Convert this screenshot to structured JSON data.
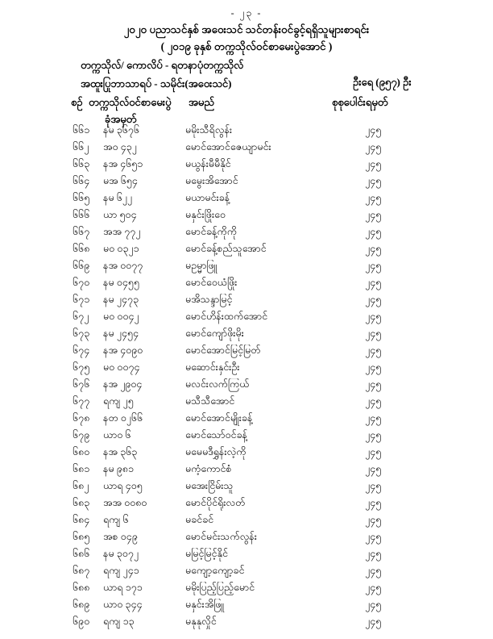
{
  "page": {
    "number_label": "- ၂၃ -"
  },
  "header": {
    "title": "၂၀၂၀ ပညာသင်နှစ် အဝေးသင် သင်တန်းဝင်ခွင့်ရရှိသူများစာရင်း",
    "subtitle": "( ၂၀၁၉ ခုနှစ် တက္ကသိုလ်ဝင်စာမေးပွဲအောင် )",
    "university_line": "တက္ကသိုလ်/ ကောလိပ်  -  ရတနာပုံတက္ကသိုလ်",
    "major_line": "အထူးပြုဘာသာရပ်  -  သမိုင်း(အဝေးသင်)",
    "count_label": "ဦးရေ (၉၅၇) ဦး"
  },
  "table": {
    "columns": {
      "serial": "စဉ်",
      "roll_line1": "တက္ကသိုလ်ဝင်စာမေးပွဲ",
      "roll_line2": "ခုံအမှတ်",
      "name": "အမည်",
      "marks": "စုစုပေါင်းရမှတ်"
    },
    "rows": [
      {
        "serial": "၆၆၁",
        "roll": "နမ ၃၆၇၆",
        "name": "မမိုးသီရိလွန်း",
        "marks": "၂၄၅"
      },
      {
        "serial": "၆၆၂",
        "roll": "အဝ ၄၃၂",
        "name": "မောင်အောင်ဇေယျာမင်း",
        "marks": "၂၄၅"
      },
      {
        "serial": "၆၆၃",
        "roll": "နအ ၄၆၅၁",
        "name": "မယွန်းမီမီနိုင်",
        "marks": "၂၄၅"
      },
      {
        "serial": "၆၆၄",
        "roll": "မအ ၆၅၄",
        "name": "မမွေးအိအောင်",
        "marks": "၂၄၅"
      },
      {
        "serial": "၆၆၅",
        "roll": "နမ ၆၂၂",
        "name": "မယာမင်းခန့်",
        "marks": "၂၄၅"
      },
      {
        "serial": "၆၆၆",
        "roll": "ယာ ၅၀၄",
        "name": "မနှင်းဖြိုးဝေ",
        "marks": "၂၄၅"
      },
      {
        "serial": "၆၆၇",
        "roll": "အအ ၇၇၂",
        "name": "မောင်ခန့်ကိုကို",
        "marks": "၂၄၅"
      },
      {
        "serial": "၆၆၈",
        "roll": "မဝ ၀၃၂၁",
        "name": "မောင်ခန့်စည်သူအောင်",
        "marks": "၂၄၅"
      },
      {
        "serial": "၆၆၉",
        "roll": "နအ ၀၀၇၇",
        "name": "မဥမ္မာဖြူ",
        "marks": "၂၄၅"
      },
      {
        "serial": "၆၇၀",
        "roll": "နမ ၀၄၅၅",
        "name": "မောင်ဝေယံဖြိုး",
        "marks": "၂၄၅"
      },
      {
        "serial": "၆၇၁",
        "roll": "နမ ၂၄၇၃",
        "name": "မအိသန္ဒာမြင့်",
        "marks": "၂၄၅"
      },
      {
        "serial": "၆၇၂",
        "roll": "မဝ ၀၀၄၂",
        "name": "မောင်ဟိန်းထက်အောင်",
        "marks": "၂၄၅"
      },
      {
        "serial": "၆၇၃",
        "roll": "နမ ၂၄၅၄",
        "name": "မောင်ကျော်ဖိုးမိုး",
        "marks": "၂၄၅"
      },
      {
        "serial": "၆၇၄",
        "roll": "နအ ၄၀၉၀",
        "name": "မောင်အောင်မြင့်မြတ်",
        "marks": "၂၄၅"
      },
      {
        "serial": "၆၇၅",
        "roll": "မဝ ၀၀၇၄",
        "name": "မဆောင်းနှင်းဦး",
        "marks": "၂၄၅"
      },
      {
        "serial": "၆၇၆",
        "roll": "နအ ၂၉၀၄",
        "name": "မလင်းလက်ကြယ်",
        "marks": "၂၄၅"
      },
      {
        "serial": "၆၇၇",
        "roll": "ရကျ ၂၅",
        "name": "မသီသီအောင်",
        "marks": "၂၄၅"
      },
      {
        "serial": "၆၇၈",
        "roll": "နတ ၀၂၆၆",
        "name": "မောင်အောင်မျိုးခန့်",
        "marks": "၂၄၅"
      },
      {
        "serial": "၆၇၉",
        "roll": "ယာဝ ၆",
        "name": "မောင်သော်ဝင်ခန့်",
        "marks": "၂၄၅"
      },
      {
        "serial": "၆၈၀",
        "roll": "နအ ၃၆၃",
        "name": "မမေမဒီရွှန်းလဲ့ကို",
        "marks": "၂၄၅"
      },
      {
        "serial": "၆၈၁",
        "roll": "နမ ၉၈၁",
        "name": "မကံ့ကောင်စံ",
        "marks": "၂၄၅"
      },
      {
        "serial": "၆၈၂",
        "roll": "ယာရ ၄၀၅",
        "name": "မအေးငြိမ်းသူ",
        "marks": "၂၄၅"
      },
      {
        "serial": "၆၈၃",
        "roll": "အအ ၀၀၈၀",
        "name": "မောင်ပိုင်ရိုးလတ်",
        "marks": "၂၄၅"
      },
      {
        "serial": "၆၈၄",
        "roll": "ရကျ ၆",
        "name": "မခင်ခင်",
        "marks": "၂၄၅"
      },
      {
        "serial": "၆၈၅",
        "roll": "အစ ၀၄၉",
        "name": "မောင်မင်းသက်လွန်း",
        "marks": "၂၄၅"
      },
      {
        "serial": "၆၈၆",
        "roll": "နမ ၃၀၇၂",
        "name": "မမြင့်မြင့်နိုင်",
        "marks": "၂၄၅"
      },
      {
        "serial": "၆၈၇",
        "roll": "ရကျ ၂၄၁",
        "name": "မကျော့ကျော့ခင်",
        "marks": "၂၄၅"
      },
      {
        "serial": "၆၈၈",
        "roll": "ယာရ ၁၇၁",
        "name": "မမိုးပြည့်ပြည့်မောင်",
        "marks": "၂၄၅"
      },
      {
        "serial": "၆၈၉",
        "roll": "ယာဝ ၃၄၄",
        "name": "မနှင်းအိဖြူ",
        "marks": "၂၄၅"
      },
      {
        "serial": "၆၉၀",
        "roll": "ရကျ ၁၃",
        "name": "မနုနုလှိုင်",
        "marks": "၂၄၅"
      }
    ]
  }
}
